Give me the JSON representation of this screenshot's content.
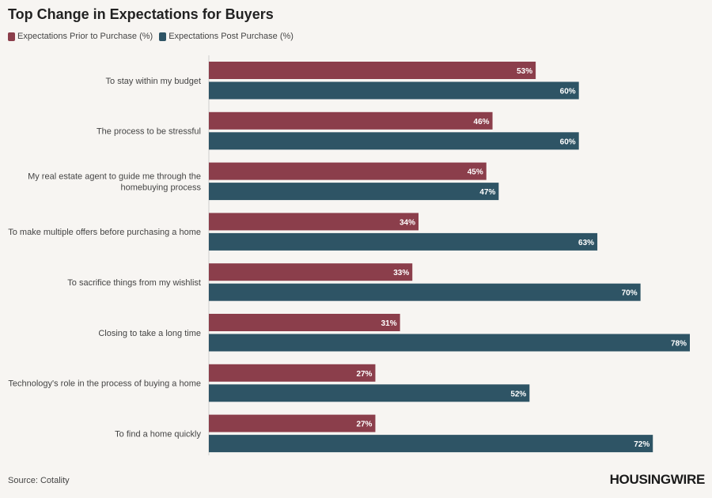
{
  "chart_data": {
    "type": "bar",
    "orientation": "horizontal",
    "title": "Top Change in Expectations for Buyers",
    "categories": [
      [
        "To stay within my budget"
      ],
      [
        "The process to be stressful"
      ],
      [
        "My real estate agent to guide me through the",
        "homebuying process"
      ],
      [
        "To make multiple offers before purchasing a home"
      ],
      [
        "To sacrifice things from my wishlist"
      ],
      [
        "Closing to take a long time"
      ],
      [
        "Technology's role in the process of buying a home"
      ],
      [
        "To find a home quickly"
      ]
    ],
    "series": [
      {
        "name": "Expectations Prior to Purchase (%)",
        "color": "#8b3e4b",
        "values": [
          53,
          46,
          45,
          34,
          33,
          31,
          27,
          27
        ]
      },
      {
        "name": "Expectations Post Purchase (%)",
        "color": "#2e5465",
        "values": [
          60,
          60,
          47,
          63,
          70,
          78,
          52,
          72
        ]
      }
    ],
    "value_suffix": "%",
    "xlim": [
      0,
      78
    ],
    "xlabel": "",
    "ylabel": ""
  },
  "footer": {
    "source": "Source: Cotality",
    "logo": "HOUSINGWIRE"
  }
}
